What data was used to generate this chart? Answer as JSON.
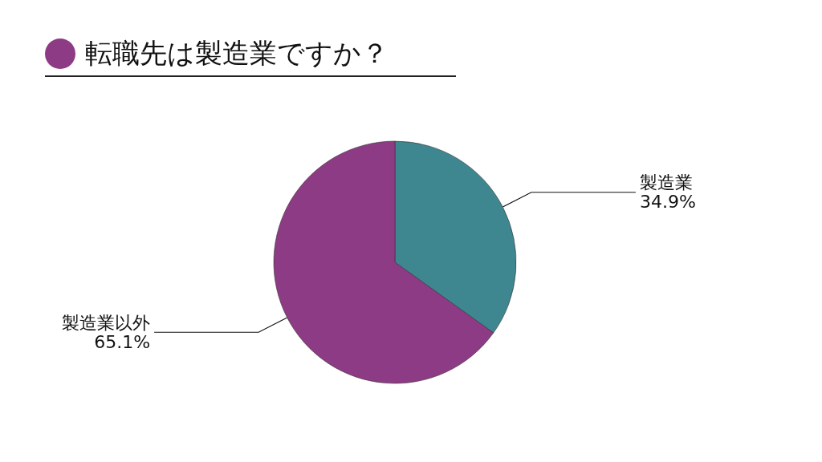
{
  "chart_data": {
    "type": "pie",
    "title": "転職先は製造業ですか？",
    "categories": [
      "製造業",
      "製造業以外"
    ],
    "values": [
      34.9,
      65.1
    ],
    "value_labels": [
      "34.9%",
      "65.1%"
    ],
    "colors": [
      "#3f8790",
      "#8e3b85"
    ],
    "legend": false
  }
}
